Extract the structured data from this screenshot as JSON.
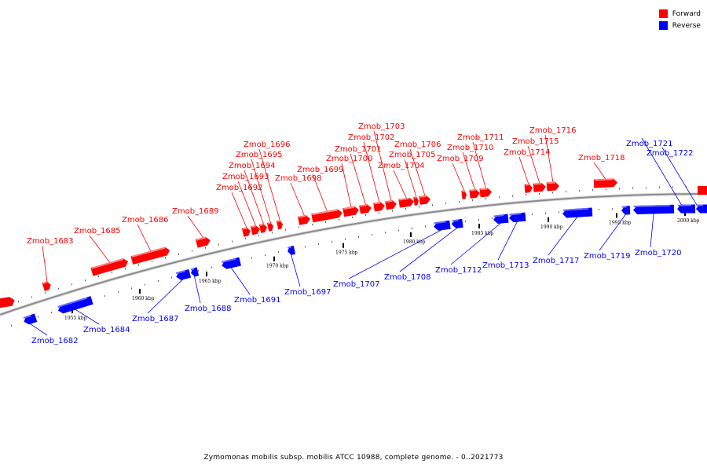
{
  "legend": [
    {
      "label": "Forward",
      "color": "#ff0000"
    },
    {
      "label": "Reverse",
      "color": "#0000ff"
    }
  ],
  "caption": "Zymomonas mobilis subsp. mobilis ATCC 10988, complete genome. - 0..2021773",
  "colors": {
    "forward": "#ff0000",
    "reverse": "#0000ff",
    "backbone": "#8c8c8c"
  },
  "ticks": [
    {
      "kbp": 1955,
      "label": "1955 kbp"
    },
    {
      "kbp": 1960,
      "label": "1960 kbp"
    },
    {
      "kbp": 1965,
      "label": "1965 kbp"
    },
    {
      "kbp": 1970,
      "label": "1970 kbp"
    },
    {
      "kbp": 1975,
      "label": "1975 kbp"
    },
    {
      "kbp": 1980,
      "label": "1980 kbp"
    },
    {
      "kbp": 1985,
      "label": "1985 kbp"
    },
    {
      "kbp": 1990,
      "label": "1990 kbp"
    },
    {
      "kbp": 1995,
      "label": "1995 kbp"
    },
    {
      "kbp": 2000,
      "label": "2000 kbp"
    }
  ],
  "genes": [
    {
      "name": "Zmob_1682",
      "strand": "reverse"
    },
    {
      "name": "Zmob_1683",
      "strand": "forward"
    },
    {
      "name": "Zmob_1684",
      "strand": "reverse"
    },
    {
      "name": "Zmob_1685",
      "strand": "forward"
    },
    {
      "name": "Zmob_1686",
      "strand": "forward"
    },
    {
      "name": "Zmob_1687",
      "strand": "reverse"
    },
    {
      "name": "Zmob_1688",
      "strand": "reverse"
    },
    {
      "name": "Zmob_1689",
      "strand": "forward"
    },
    {
      "name": "Zmob_1691",
      "strand": "reverse"
    },
    {
      "name": "Zmob_1692",
      "strand": "forward"
    },
    {
      "name": "Zmob_1693",
      "strand": "forward"
    },
    {
      "name": "Zmob_1694",
      "strand": "forward"
    },
    {
      "name": "Zmob_1695",
      "strand": "forward"
    },
    {
      "name": "Zmob_1696",
      "strand": "forward"
    },
    {
      "name": "Zmob_1697",
      "strand": "reverse"
    },
    {
      "name": "Zmob_1698",
      "strand": "forward"
    },
    {
      "name": "Zmob_1699",
      "strand": "forward"
    },
    {
      "name": "Zmob_1700",
      "strand": "forward"
    },
    {
      "name": "Zmob_1701",
      "strand": "forward"
    },
    {
      "name": "Zmob_1702",
      "strand": "forward"
    },
    {
      "name": "Zmob_1703",
      "strand": "forward"
    },
    {
      "name": "Zmob_1704",
      "strand": "forward"
    },
    {
      "name": "Zmob_1705",
      "strand": "forward"
    },
    {
      "name": "Zmob_1706",
      "strand": "forward"
    },
    {
      "name": "Zmob_1707",
      "strand": "reverse"
    },
    {
      "name": "Zmob_1708",
      "strand": "reverse"
    },
    {
      "name": "Zmob_1709",
      "strand": "forward"
    },
    {
      "name": "Zmob_1710",
      "strand": "forward"
    },
    {
      "name": "Zmob_1711",
      "strand": "forward"
    },
    {
      "name": "Zmob_1712",
      "strand": "reverse"
    },
    {
      "name": "Zmob_1713",
      "strand": "reverse"
    },
    {
      "name": "Zmob_1714",
      "strand": "forward"
    },
    {
      "name": "Zmob_1715",
      "strand": "forward"
    },
    {
      "name": "Zmob_1716",
      "strand": "forward"
    },
    {
      "name": "Zmob_1717",
      "strand": "reverse"
    },
    {
      "name": "Zmob_1718",
      "strand": "forward"
    },
    {
      "name": "Zmob_1719",
      "strand": "reverse"
    },
    {
      "name": "Zmob_1720",
      "strand": "reverse"
    },
    {
      "name": "Zmob_1721",
      "strand": "reverse"
    },
    {
      "name": "Zmob_1722",
      "strand": "reverse"
    }
  ]
}
